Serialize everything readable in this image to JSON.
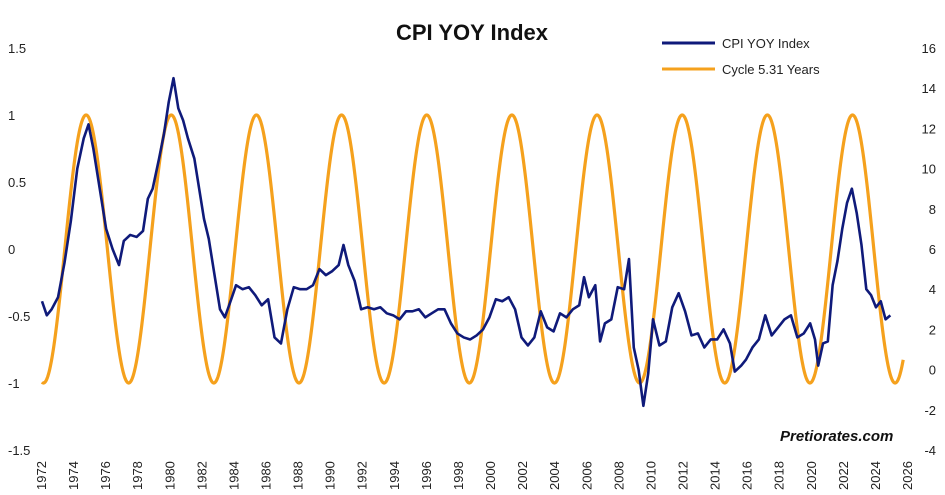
{
  "chart_data": {
    "type": "line",
    "title": "CPI YOY Index",
    "watermark": "Pretiorates.com",
    "legend_position": "top-right",
    "grid": false,
    "x_ticks": [
      "1972",
      "1974",
      "1976",
      "1978",
      "1980",
      "1982",
      "1984",
      "1986",
      "1988",
      "1990",
      "1992",
      "1994",
      "1996",
      "1998",
      "2000",
      "2002",
      "2004",
      "2006",
      "2008",
      "2010",
      "2012",
      "2014",
      "2016",
      "2018",
      "2020",
      "2022",
      "2024",
      "2026"
    ],
    "xlim": [
      1972,
      2026
    ],
    "y_left_ticks": [
      "1.5",
      "1",
      "0.5",
      "0",
      "-0.5",
      "-1",
      "-1.5"
    ],
    "y_left_lim": [
      -1.5,
      1.5
    ],
    "y_right_ticks": [
      "16",
      "14",
      "12",
      "10",
      "8",
      "6",
      "4",
      "2",
      "0",
      "-2",
      "-4"
    ],
    "y_right_lim": [
      -4,
      16
    ],
    "series": [
      {
        "name": "CPI YOY Index",
        "axis": "right",
        "color": "#0f1a7a",
        "points": [
          [
            1972.0,
            3.4
          ],
          [
            1972.3,
            2.7
          ],
          [
            1972.6,
            3.0
          ],
          [
            1973.0,
            3.6
          ],
          [
            1973.4,
            5.3
          ],
          [
            1973.8,
            7.4
          ],
          [
            1974.2,
            10.0
          ],
          [
            1974.6,
            11.5
          ],
          [
            1974.9,
            12.2
          ],
          [
            1975.2,
            11.0
          ],
          [
            1975.6,
            9.0
          ],
          [
            1976.0,
            7.0
          ],
          [
            1976.4,
            6.0
          ],
          [
            1976.8,
            5.2
          ],
          [
            1977.1,
            6.4
          ],
          [
            1977.5,
            6.7
          ],
          [
            1977.9,
            6.6
          ],
          [
            1978.3,
            6.9
          ],
          [
            1978.6,
            8.5
          ],
          [
            1978.9,
            9.0
          ],
          [
            1979.3,
            10.5
          ],
          [
            1979.6,
            11.7
          ],
          [
            1979.9,
            13.3
          ],
          [
            1980.2,
            14.5
          ],
          [
            1980.5,
            13.0
          ],
          [
            1980.8,
            12.4
          ],
          [
            1981.1,
            11.5
          ],
          [
            1981.5,
            10.5
          ],
          [
            1981.8,
            9.0
          ],
          [
            1982.1,
            7.5
          ],
          [
            1982.4,
            6.5
          ],
          [
            1982.8,
            4.5
          ],
          [
            1983.1,
            3.0
          ],
          [
            1983.4,
            2.6
          ],
          [
            1983.8,
            3.5
          ],
          [
            1984.1,
            4.2
          ],
          [
            1984.5,
            4.0
          ],
          [
            1984.9,
            4.1
          ],
          [
            1985.3,
            3.7
          ],
          [
            1985.7,
            3.2
          ],
          [
            1986.1,
            3.5
          ],
          [
            1986.5,
            1.6
          ],
          [
            1986.9,
            1.3
          ],
          [
            1987.3,
            3.0
          ],
          [
            1987.7,
            4.1
          ],
          [
            1988.1,
            4.0
          ],
          [
            1988.5,
            4.0
          ],
          [
            1988.9,
            4.2
          ],
          [
            1989.3,
            5.0
          ],
          [
            1989.7,
            4.7
          ],
          [
            1990.1,
            4.9
          ],
          [
            1990.5,
            5.2
          ],
          [
            1990.8,
            6.2
          ],
          [
            1991.1,
            5.2
          ],
          [
            1991.5,
            4.4
          ],
          [
            1991.9,
            3.0
          ],
          [
            1992.3,
            3.1
          ],
          [
            1992.7,
            3.0
          ],
          [
            1993.1,
            3.1
          ],
          [
            1993.5,
            2.8
          ],
          [
            1993.9,
            2.7
          ],
          [
            1994.3,
            2.5
          ],
          [
            1994.7,
            2.9
          ],
          [
            1995.1,
            2.9
          ],
          [
            1995.5,
            3.0
          ],
          [
            1995.9,
            2.6
          ],
          [
            1996.3,
            2.8
          ],
          [
            1996.7,
            3.0
          ],
          [
            1997.1,
            3.0
          ],
          [
            1997.5,
            2.3
          ],
          [
            1997.9,
            1.8
          ],
          [
            1998.3,
            1.6
          ],
          [
            1998.7,
            1.5
          ],
          [
            1999.1,
            1.7
          ],
          [
            1999.5,
            2.0
          ],
          [
            1999.9,
            2.6
          ],
          [
            2000.3,
            3.5
          ],
          [
            2000.7,
            3.4
          ],
          [
            2001.1,
            3.6
          ],
          [
            2001.5,
            3.0
          ],
          [
            2001.9,
            1.6
          ],
          [
            2002.3,
            1.2
          ],
          [
            2002.7,
            1.6
          ],
          [
            2003.1,
            2.9
          ],
          [
            2003.5,
            2.1
          ],
          [
            2003.9,
            1.9
          ],
          [
            2004.3,
            2.8
          ],
          [
            2004.7,
            2.6
          ],
          [
            2005.1,
            3.0
          ],
          [
            2005.5,
            3.2
          ],
          [
            2005.8,
            4.6
          ],
          [
            2006.1,
            3.6
          ],
          [
            2006.5,
            4.2
          ],
          [
            2006.8,
            1.4
          ],
          [
            2007.1,
            2.3
          ],
          [
            2007.5,
            2.5
          ],
          [
            2007.9,
            4.1
          ],
          [
            2008.3,
            4.0
          ],
          [
            2008.6,
            5.5
          ],
          [
            2008.9,
            1.1
          ],
          [
            2009.2,
            0.0
          ],
          [
            2009.5,
            -1.8
          ],
          [
            2009.8,
            -0.2
          ],
          [
            2010.1,
            2.5
          ],
          [
            2010.5,
            1.2
          ],
          [
            2010.9,
            1.4
          ],
          [
            2011.3,
            3.1
          ],
          [
            2011.7,
            3.8
          ],
          [
            2012.1,
            2.9
          ],
          [
            2012.5,
            1.7
          ],
          [
            2012.9,
            1.8
          ],
          [
            2013.3,
            1.1
          ],
          [
            2013.7,
            1.5
          ],
          [
            2014.1,
            1.5
          ],
          [
            2014.5,
            2.0
          ],
          [
            2014.9,
            1.3
          ],
          [
            2015.2,
            -0.1
          ],
          [
            2015.6,
            0.2
          ],
          [
            2015.9,
            0.5
          ],
          [
            2016.3,
            1.1
          ],
          [
            2016.7,
            1.5
          ],
          [
            2017.1,
            2.7
          ],
          [
            2017.5,
            1.7
          ],
          [
            2017.9,
            2.1
          ],
          [
            2018.3,
            2.5
          ],
          [
            2018.7,
            2.7
          ],
          [
            2019.1,
            1.6
          ],
          [
            2019.5,
            1.8
          ],
          [
            2019.9,
            2.3
          ],
          [
            2020.2,
            1.5
          ],
          [
            2020.4,
            0.2
          ],
          [
            2020.7,
            1.3
          ],
          [
            2021.0,
            1.4
          ],
          [
            2021.3,
            4.2
          ],
          [
            2021.6,
            5.4
          ],
          [
            2021.9,
            7.0
          ],
          [
            2022.2,
            8.3
          ],
          [
            2022.5,
            9.0
          ],
          [
            2022.8,
            7.8
          ],
          [
            2023.1,
            6.2
          ],
          [
            2023.4,
            4.0
          ],
          [
            2023.7,
            3.7
          ],
          [
            2024.0,
            3.1
          ],
          [
            2024.3,
            3.4
          ],
          [
            2024.6,
            2.5
          ],
          [
            2024.9,
            2.7
          ]
        ]
      },
      {
        "name": "Cycle 5.31 Years",
        "axis": "left",
        "color": "#f5a11d",
        "function": "cosine",
        "period": 5.31,
        "amplitude": 1,
        "peak_x": 1974.75,
        "x_range": [
          1972.0,
          2025.7
        ]
      }
    ]
  }
}
